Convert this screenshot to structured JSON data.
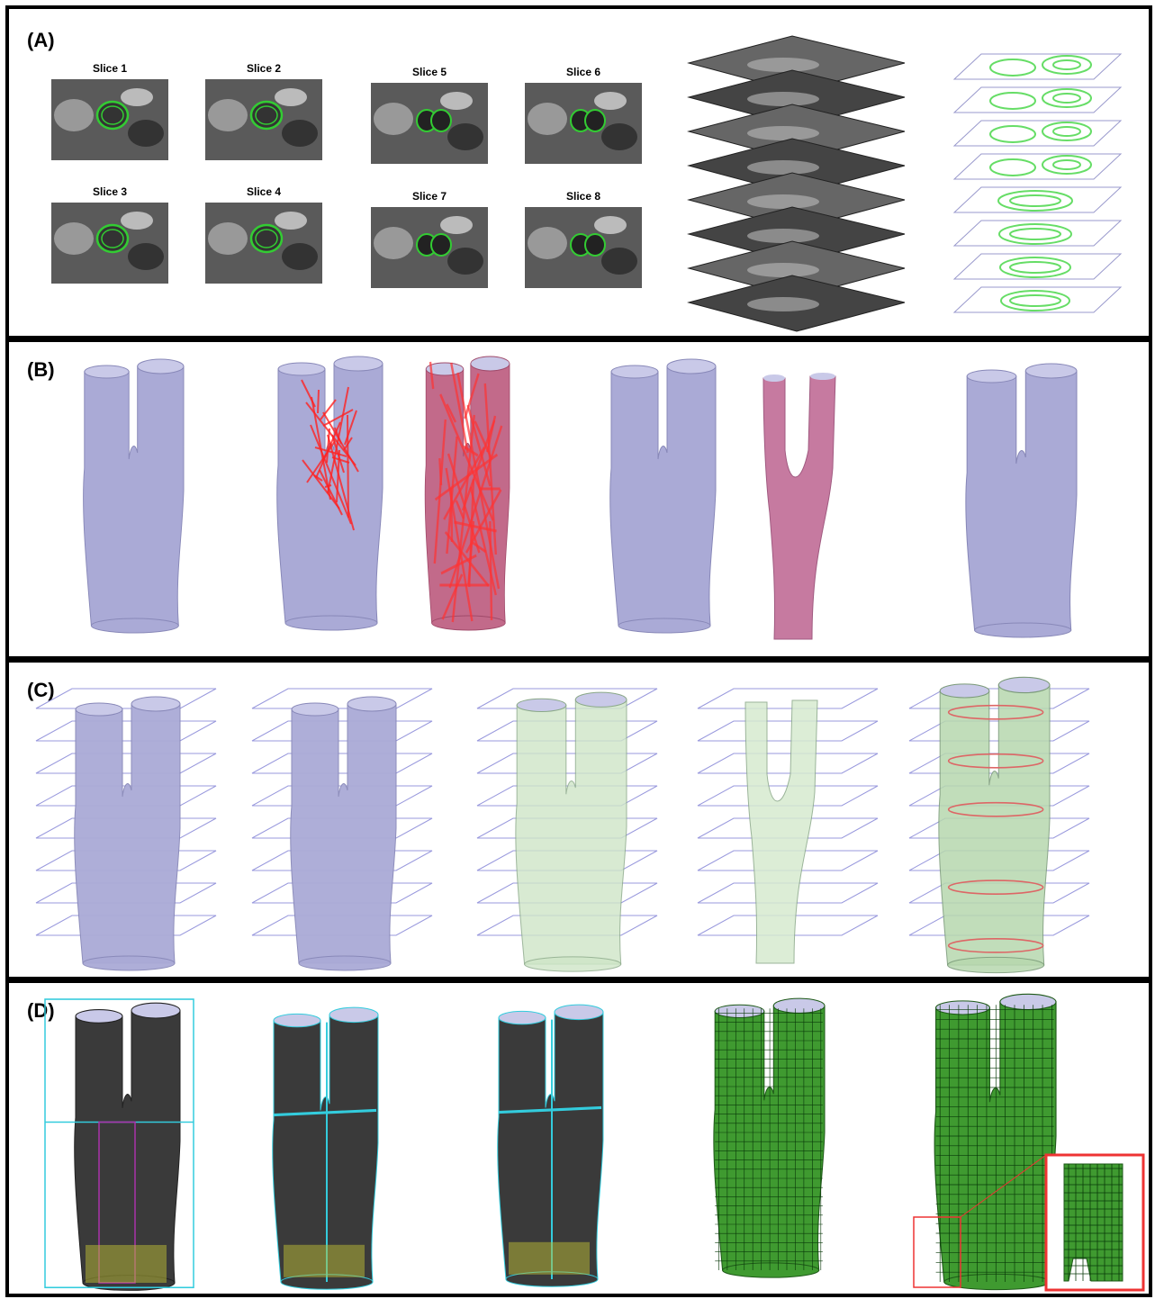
{
  "panels": [
    {
      "label": "(A)",
      "slices": [
        "Slice 1",
        "Slice 2",
        "Slice 5",
        "Slice 6",
        "Slice 3",
        "Slice 4",
        "Slice 7",
        "Slice 8"
      ]
    },
    {
      "label": "(B)"
    },
    {
      "label": "(C)"
    },
    {
      "label": "(D)"
    }
  ]
}
